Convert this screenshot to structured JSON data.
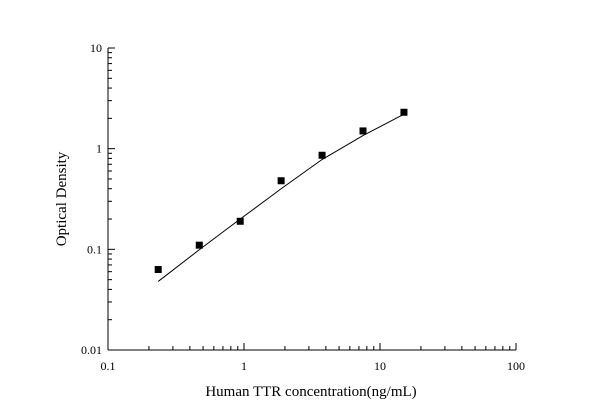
{
  "chart_data": {
    "type": "scatter",
    "title": "",
    "xlabel": "Human TTR concentration(ng/mL)",
    "ylabel": "Optical Density",
    "x_scale": "log",
    "y_scale": "log",
    "xlim": [
      0.1,
      100
    ],
    "ylim": [
      0.01,
      10
    ],
    "x_ticks": [
      0.1,
      1,
      10,
      100
    ],
    "x_tick_labels": [
      "0.1",
      "1",
      "10",
      "100"
    ],
    "y_ticks": [
      0.01,
      0.1,
      1,
      10
    ],
    "y_tick_labels": [
      "0.01",
      "0.1",
      "1",
      "10"
    ],
    "grid": false,
    "legend": "none",
    "marker_color": "#000000",
    "line_color": "#000000",
    "points": {
      "x": [
        0.234,
        0.469,
        0.938,
        1.875,
        3.75,
        7.5,
        15
      ],
      "y": [
        0.063,
        0.11,
        0.19,
        0.48,
        0.86,
        1.5,
        2.3
      ]
    },
    "fit_line": {
      "x": [
        0.234,
        0.469,
        0.938,
        1.875,
        3.75,
        7.5,
        15
      ],
      "y": [
        0.048,
        0.099,
        0.2,
        0.4,
        0.78,
        1.35,
        2.2
      ]
    }
  }
}
